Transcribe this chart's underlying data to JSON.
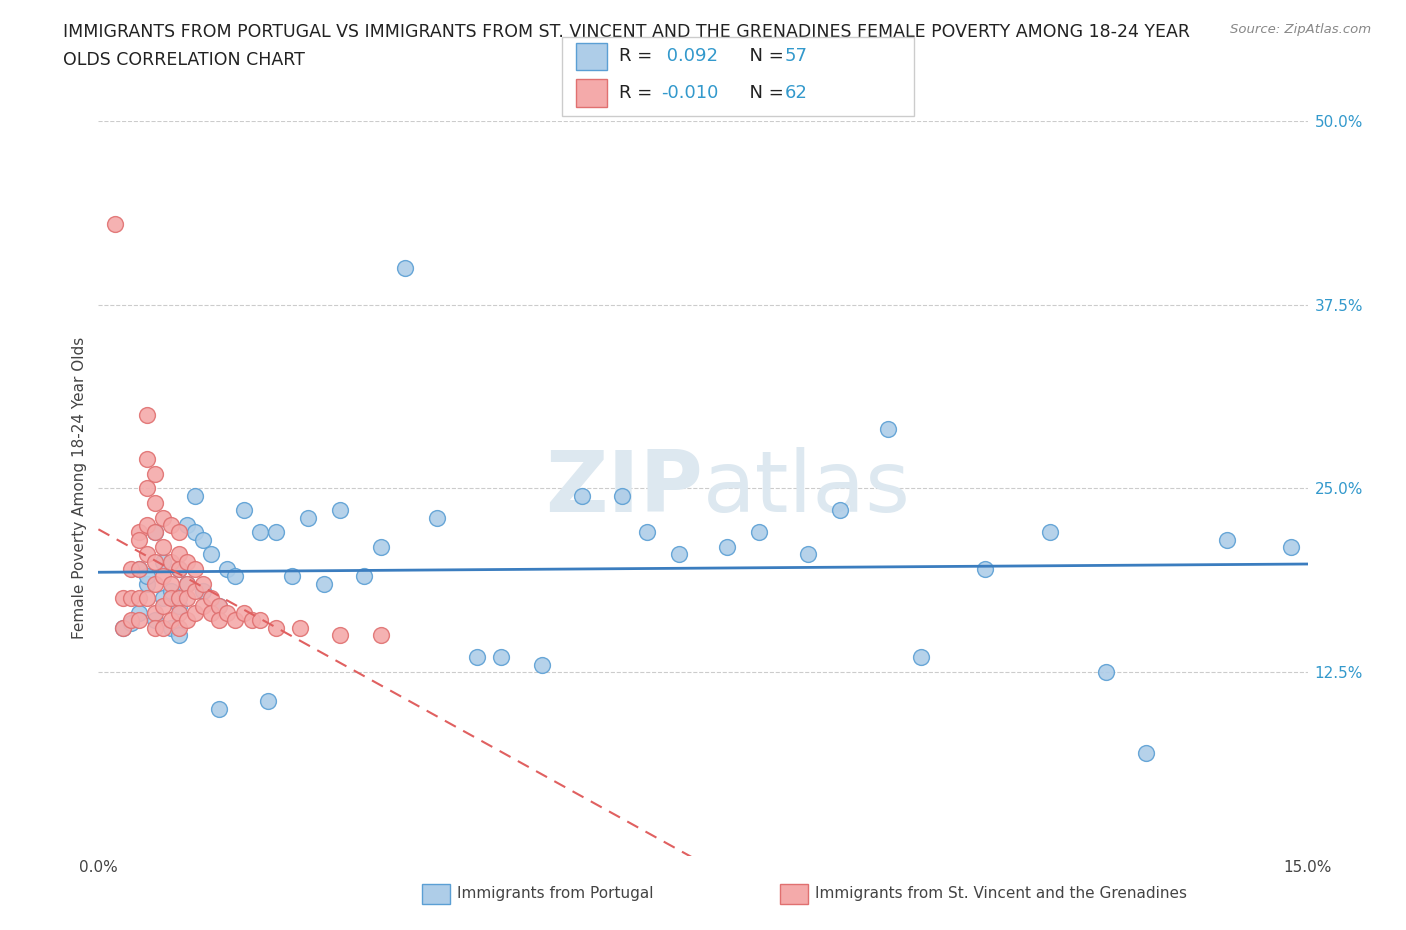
{
  "title_line1": "IMMIGRANTS FROM PORTUGAL VS IMMIGRANTS FROM ST. VINCENT AND THE GRENADINES FEMALE POVERTY AMONG 18-24 YEAR",
  "title_line2": "OLDS CORRELATION CHART",
  "source": "Source: ZipAtlas.com",
  "ylabel": "Female Poverty Among 18-24 Year Olds",
  "xlim": [
    0.0,
    0.15
  ],
  "ylim": [
    0.0,
    0.5
  ],
  "ytick_positions": [
    0.125,
    0.25,
    0.375,
    0.5
  ],
  "ytick_labels": [
    "12.5%",
    "25.0%",
    "37.5%",
    "50.0%"
  ],
  "xtick_positions": [
    0.0,
    0.15
  ],
  "xtick_labels": [
    "0.0%",
    "15.0%"
  ],
  "legend_r1": "R =  0.092",
  "legend_n1": "N = 57",
  "legend_r2": "R = -0.010",
  "legend_n2": "N = 62",
  "color_blue_fill": "#aecde8",
  "color_blue_edge": "#5b9fd4",
  "color_pink_fill": "#f4aaaa",
  "color_pink_edge": "#e07070",
  "color_blue_line": "#3b7dbf",
  "color_pink_line": "#e06060",
  "grid_color": "#cccccc",
  "watermark": "ZIPatlas",
  "portugal_x": [
    0.003,
    0.004,
    0.005,
    0.005,
    0.006,
    0.006,
    0.007,
    0.007,
    0.008,
    0.008,
    0.009,
    0.009,
    0.01,
    0.01,
    0.01,
    0.011,
    0.011,
    0.012,
    0.012,
    0.013,
    0.013,
    0.014,
    0.015,
    0.015,
    0.016,
    0.017,
    0.018,
    0.02,
    0.021,
    0.022,
    0.024,
    0.026,
    0.028,
    0.03,
    0.033,
    0.035,
    0.038,
    0.042,
    0.047,
    0.05,
    0.055,
    0.06,
    0.065,
    0.068,
    0.072,
    0.078,
    0.082,
    0.088,
    0.092,
    0.098,
    0.102,
    0.11,
    0.118,
    0.125,
    0.13,
    0.14,
    0.148
  ],
  "portugal_y": [
    0.155,
    0.158,
    0.195,
    0.165,
    0.185,
    0.19,
    0.22,
    0.16,
    0.2,
    0.175,
    0.155,
    0.18,
    0.195,
    0.17,
    0.15,
    0.185,
    0.225,
    0.245,
    0.22,
    0.18,
    0.215,
    0.205,
    0.1,
    0.17,
    0.195,
    0.19,
    0.235,
    0.22,
    0.105,
    0.22,
    0.19,
    0.23,
    0.185,
    0.235,
    0.19,
    0.21,
    0.4,
    0.23,
    0.135,
    0.135,
    0.13,
    0.245,
    0.245,
    0.22,
    0.205,
    0.21,
    0.22,
    0.205,
    0.235,
    0.29,
    0.135,
    0.195,
    0.22,
    0.125,
    0.07,
    0.215,
    0.21
  ],
  "svg_x": [
    0.002,
    0.003,
    0.003,
    0.004,
    0.004,
    0.004,
    0.005,
    0.005,
    0.005,
    0.005,
    0.005,
    0.006,
    0.006,
    0.006,
    0.006,
    0.006,
    0.006,
    0.007,
    0.007,
    0.007,
    0.007,
    0.007,
    0.007,
    0.007,
    0.008,
    0.008,
    0.008,
    0.008,
    0.008,
    0.009,
    0.009,
    0.009,
    0.009,
    0.009,
    0.01,
    0.01,
    0.01,
    0.01,
    0.01,
    0.01,
    0.011,
    0.011,
    0.011,
    0.011,
    0.012,
    0.012,
    0.012,
    0.013,
    0.013,
    0.014,
    0.014,
    0.015,
    0.015,
    0.016,
    0.017,
    0.018,
    0.019,
    0.02,
    0.022,
    0.025,
    0.03,
    0.035
  ],
  "svg_y": [
    0.43,
    0.155,
    0.175,
    0.16,
    0.175,
    0.195,
    0.22,
    0.215,
    0.195,
    0.175,
    0.16,
    0.3,
    0.27,
    0.25,
    0.225,
    0.205,
    0.175,
    0.26,
    0.24,
    0.22,
    0.2,
    0.185,
    0.165,
    0.155,
    0.23,
    0.21,
    0.19,
    0.17,
    0.155,
    0.225,
    0.2,
    0.185,
    0.175,
    0.16,
    0.22,
    0.205,
    0.195,
    0.175,
    0.165,
    0.155,
    0.2,
    0.185,
    0.175,
    0.16,
    0.195,
    0.18,
    0.165,
    0.185,
    0.17,
    0.175,
    0.165,
    0.17,
    0.16,
    0.165,
    0.16,
    0.165,
    0.16,
    0.16,
    0.155,
    0.155,
    0.15,
    0.15
  ]
}
